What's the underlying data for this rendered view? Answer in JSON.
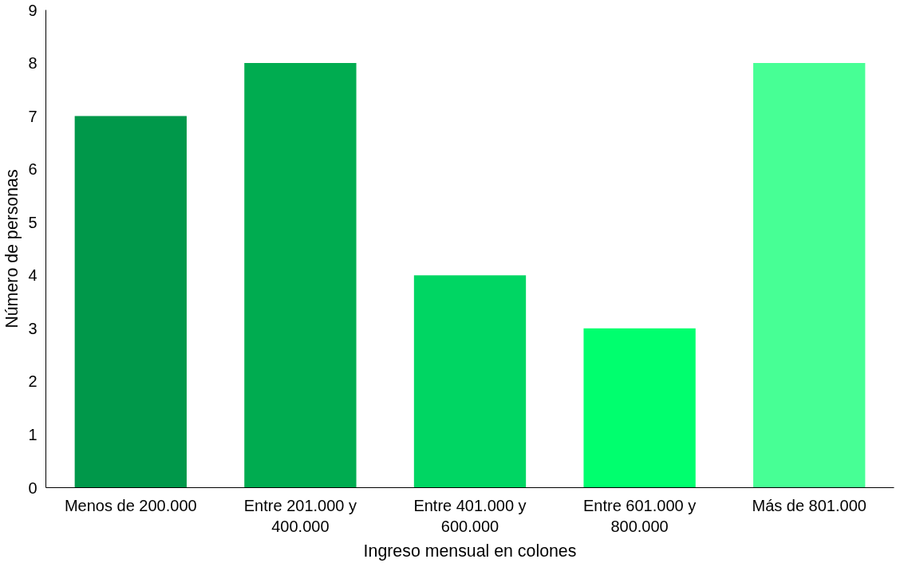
{
  "chart_data": {
    "type": "bar",
    "xlabel": "Ingreso mensual en colones",
    "ylabel": "Número de personas",
    "categories": [
      "Menos de 200.000",
      "Entre 201.000 y 400.000",
      "Entre 401.000 y 600.000",
      "Entre 601.000 y 800.000",
      "Más de 801.000"
    ],
    "values": [
      7,
      8,
      4,
      3,
      8
    ],
    "colors": [
      "#00984a",
      "#00ac50",
      "#00d663",
      "#00ff6e",
      "#47ff95"
    ],
    "ylim": [
      0,
      9
    ],
    "yticks": [
      0,
      1,
      2,
      3,
      4,
      5,
      6,
      7,
      8,
      9
    ],
    "grid": false
  }
}
